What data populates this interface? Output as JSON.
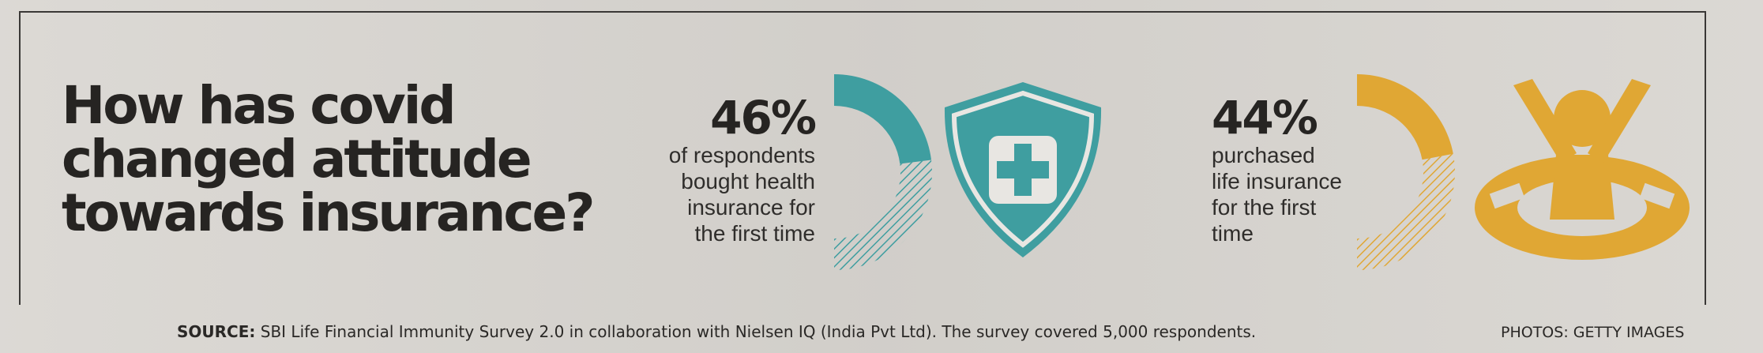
{
  "headline": {
    "lines": [
      "How has covid",
      "changed attitude",
      "towards insurance?"
    ]
  },
  "stats": [
    {
      "percent_text": "46%",
      "value": 46,
      "desc_lines": [
        "of respondents",
        "bought health",
        "insurance for",
        "the first time"
      ],
      "icon": "health-shield-icon",
      "color": "#3f9ea0"
    },
    {
      "percent_text": "44%",
      "value": 44,
      "desc_lines": [
        "purchased",
        "life insurance",
        "for the first",
        "time"
      ],
      "icon": "life-ring-person-icon",
      "color": "#e0a734"
    }
  ],
  "footer": {
    "source_label": "SOURCE:",
    "source_text": " SBI Life Financial Immunity Survey 2.0 in collaboration with Nielsen IQ (India Pvt Ltd). The survey covered 5,000 respondents.",
    "photos_credit": "PHOTOS: GETTY IMAGES"
  }
}
